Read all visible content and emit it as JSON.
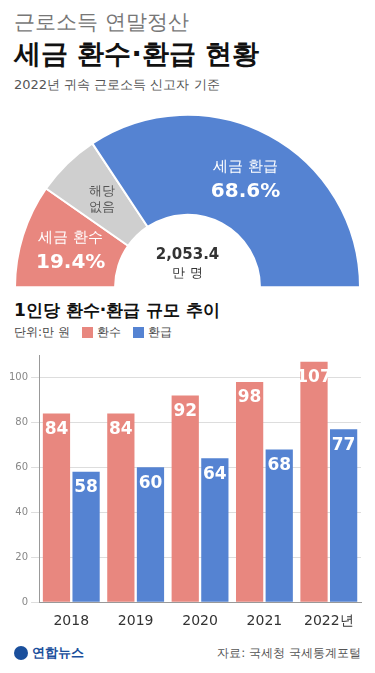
{
  "header": {
    "title_top": "근로소득 연말정산",
    "title": "세금 환수·환급 현황",
    "subtitle": "2022년 귀속 근로소득 신고자 기준"
  },
  "chart_data": [
    {
      "type": "doughnut",
      "categories": [
        "세금 환수",
        "해당 없음",
        "세금 환급"
      ],
      "values": [
        19.4,
        12.0,
        68.6
      ],
      "value_labels": [
        "19.4%",
        null,
        "68.6%"
      ],
      "colors": [
        "#e8877f",
        "#cfcfcf",
        "#5583d2"
      ],
      "data_labels": true,
      "annotations": [
        "2,053.4",
        "만 명"
      ]
    },
    {
      "type": "bar",
      "title": "1인당 환수·환급 규모 추이",
      "subtitle": "단위:만 원",
      "categories": [
        "2018",
        "2019",
        "2020",
        "2021",
        "2022년"
      ],
      "series": [
        {
          "name": "환수",
          "color": "#e8877f",
          "values": [
            84,
            84,
            92,
            98,
            107
          ]
        },
        {
          "name": "환급",
          "color": "#5583d2",
          "values": [
            58,
            60,
            64,
            68,
            77
          ]
        }
      ],
      "ylim": [
        0,
        110
      ],
      "yticks": [
        0,
        20,
        40,
        60,
        80,
        100
      ],
      "grid": true,
      "data_labels": true,
      "legend": "top"
    }
  ],
  "footer": {
    "logo": "연합뉴스",
    "source": "자료: 국세청 국세통계포털"
  }
}
